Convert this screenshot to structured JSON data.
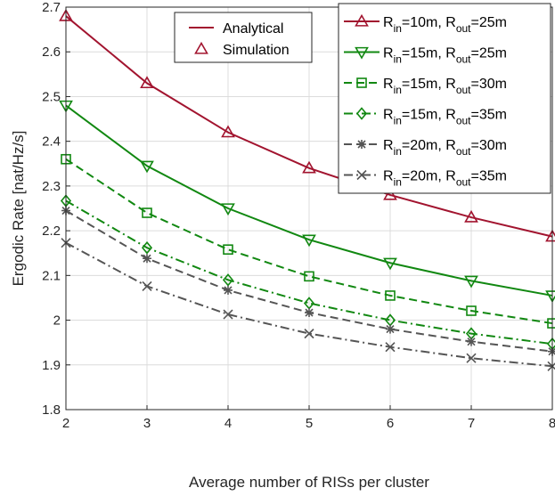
{
  "chart_data": {
    "type": "line",
    "title": "",
    "xlabel": "Average number of RISs per cluster",
    "ylabel": "Ergodic Rate [nat/Hz/s]",
    "x": [
      2,
      3,
      4,
      5,
      6,
      7,
      8
    ],
    "xlim": [
      2,
      8
    ],
    "ylim": [
      1.8,
      2.7
    ],
    "xticks": [
      "2",
      "3",
      "4",
      "5",
      "6",
      "7",
      "8"
    ],
    "yticks": [
      "1.8",
      "1.9",
      "2",
      "2.1",
      "2.2",
      "2.3",
      "2.4",
      "2.5",
      "2.6",
      "2.7"
    ],
    "grid": true,
    "legend_placement": "top-right",
    "style_legend": [
      {
        "label": "Analytical",
        "marker": "line"
      },
      {
        "label": "Simulation",
        "marker": "triangle-up"
      }
    ],
    "series": [
      {
        "name_parts": [
          "R",
          "in",
          "=10m, R",
          "out",
          "=25m"
        ],
        "color": "#a2142f",
        "dash": "solid",
        "marker": "triangle-up",
        "values": [
          2.68,
          2.53,
          2.42,
          2.34,
          2.28,
          2.23,
          2.187
        ]
      },
      {
        "name_parts": [
          "R",
          "in",
          "=15m, R",
          "out",
          "=25m"
        ],
        "color": "#118811",
        "dash": "solid",
        "marker": "triangle-down",
        "values": [
          2.48,
          2.345,
          2.25,
          2.18,
          2.128,
          2.088,
          2.055
        ]
      },
      {
        "name_parts": [
          "R",
          "in",
          "=15m, R",
          "out",
          "=30m"
        ],
        "color": "#118811",
        "dash": "dashed",
        "marker": "square",
        "values": [
          2.36,
          2.24,
          2.158,
          2.098,
          2.055,
          2.021,
          1.993
        ]
      },
      {
        "name_parts": [
          "R",
          "in",
          "=15m, R",
          "out",
          "=35m"
        ],
        "color": "#118811",
        "dash": "dashdot",
        "marker": "diamond",
        "values": [
          2.267,
          2.162,
          2.09,
          2.038,
          2.0,
          1.97,
          1.947
        ]
      },
      {
        "name_parts": [
          "R",
          "in",
          "=20m, R",
          "out",
          "=30m"
        ],
        "color": "#555555",
        "dash": "dashed",
        "marker": "asterisk",
        "values": [
          2.245,
          2.138,
          2.067,
          2.017,
          1.98,
          1.952,
          1.93
        ]
      },
      {
        "name_parts": [
          "R",
          "in",
          "=20m, R",
          "out",
          "=35m"
        ],
        "color": "#555555",
        "dash": "dashdot",
        "marker": "x",
        "values": [
          2.173,
          2.076,
          2.013,
          1.97,
          1.94,
          1.915,
          1.897
        ]
      }
    ]
  }
}
